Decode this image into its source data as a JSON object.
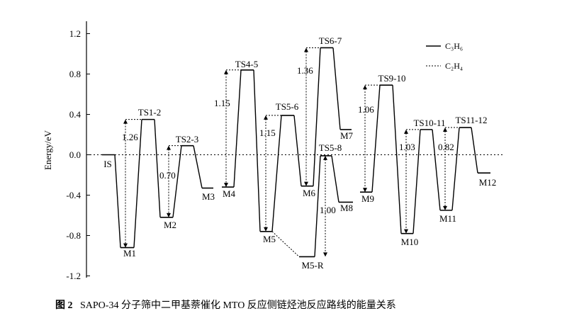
{
  "chart_data": {
    "type": "line",
    "ylabel": "Energy/eV",
    "ylim": [
      -1.2,
      1.2
    ],
    "yticks": [
      "-1.2",
      "-0.8",
      "-0.4",
      "0.0",
      "0.4",
      "0.8",
      "1.2"
    ],
    "grid": false,
    "legend": {
      "placement": "top-right",
      "entries": [
        {
          "label": "C₃H₆",
          "style": "solid"
        },
        {
          "label": "C₂H₄",
          "style": "dotted"
        }
      ]
    },
    "states": [
      {
        "name": "IS",
        "energy": 0.0
      },
      {
        "name": "M1",
        "energy": -0.92
      },
      {
        "name": "TS1-2",
        "energy": 0.35
      },
      {
        "name": "M2",
        "energy": -0.62
      },
      {
        "name": "TS2-3",
        "energy": 0.09
      },
      {
        "name": "M3",
        "energy": -0.33
      },
      {
        "name": "M4",
        "energy": -0.32
      },
      {
        "name": "TS4-5",
        "energy": 0.84
      },
      {
        "name": "M5",
        "energy": -0.76
      },
      {
        "name": "TS5-6",
        "energy": 0.39
      },
      {
        "name": "M6",
        "energy": -0.31
      },
      {
        "name": "TS6-7",
        "energy": 1.06
      },
      {
        "name": "M7",
        "energy": 0.25
      },
      {
        "name": "M5-R",
        "energy": -1.01
      },
      {
        "name": "TS5-8",
        "energy": -0.01
      },
      {
        "name": "M8",
        "energy": -0.47
      },
      {
        "name": "M9",
        "energy": -0.37
      },
      {
        "name": "TS9-10",
        "energy": 0.69
      },
      {
        "name": "M10",
        "energy": -0.78
      },
      {
        "name": "TS10-11",
        "energy": 0.25
      },
      {
        "name": "M11",
        "energy": -0.55
      },
      {
        "name": "TS11-12",
        "energy": 0.27
      },
      {
        "name": "M12",
        "energy": -0.18
      }
    ],
    "barriers": [
      {
        "value": "1.26"
      },
      {
        "value": "0.70"
      },
      {
        "value": "1.15"
      },
      {
        "value": "1.15"
      },
      {
        "value": "1.36"
      },
      {
        "value": "1.00"
      },
      {
        "value": "1.06"
      },
      {
        "value": "1.03"
      },
      {
        "value": "0.82"
      }
    ]
  },
  "caption": {
    "figure_label": "图 2",
    "text": "SAPO-34 分子筛中二甲基萘催化 MTO 反应侧链烃池反应路线的能量关系"
  }
}
